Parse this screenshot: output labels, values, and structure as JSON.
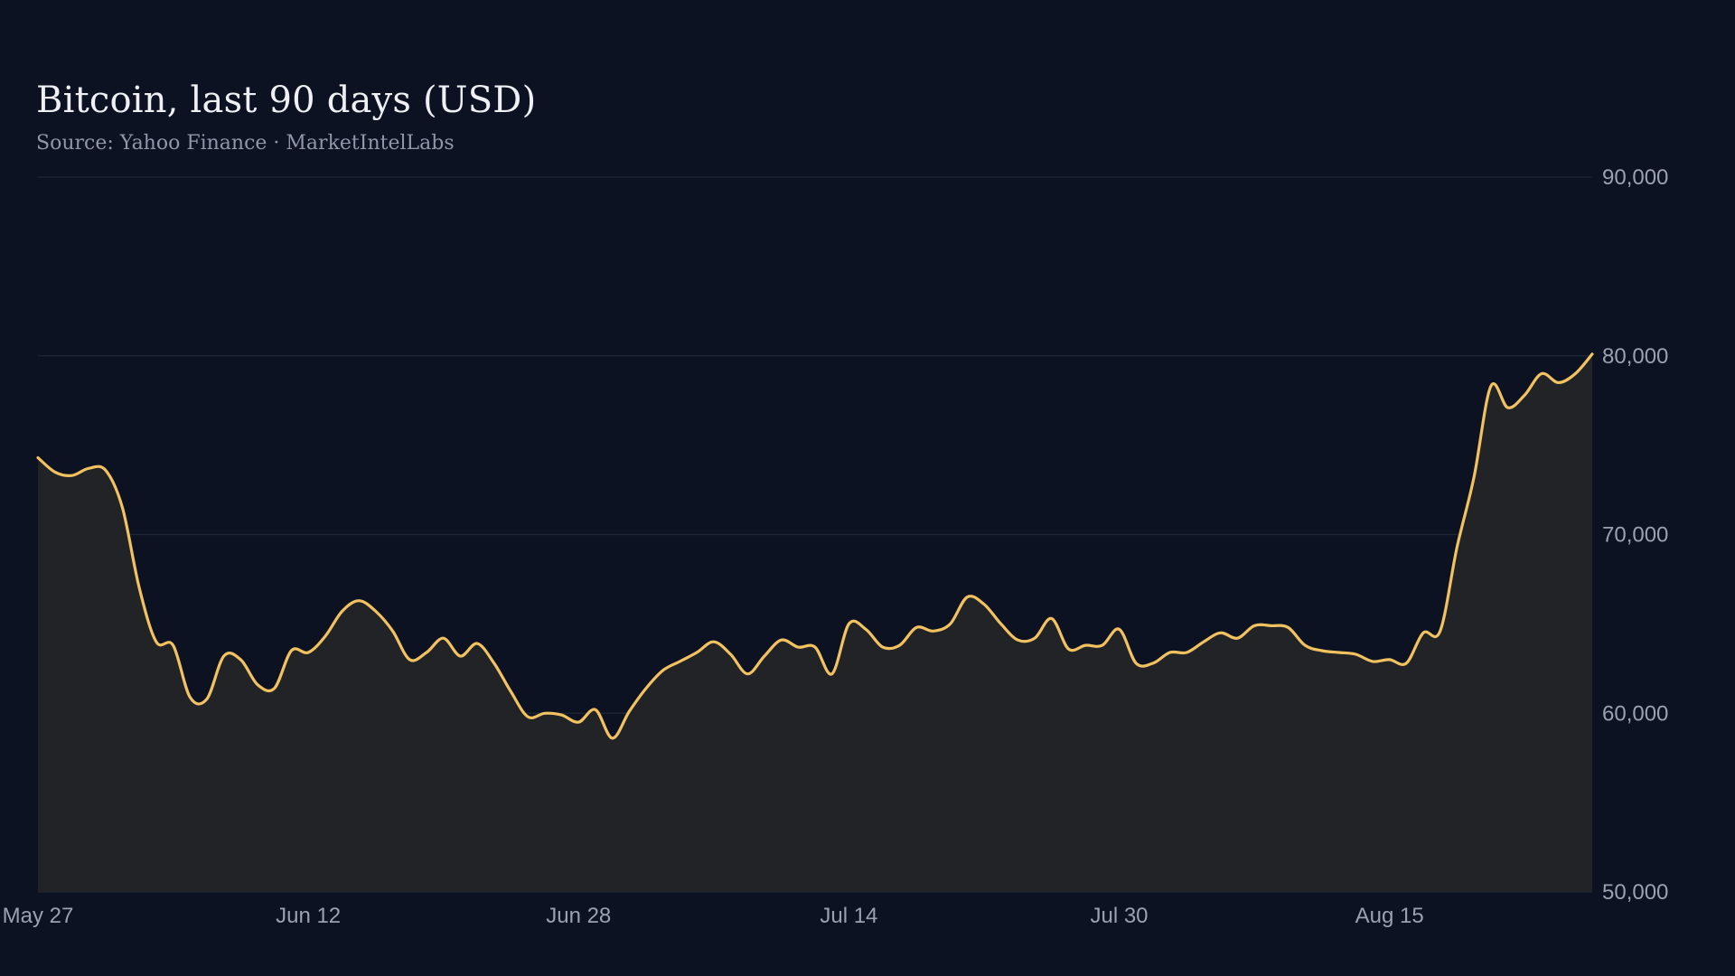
{
  "colors": {
    "background": "#0c1222",
    "line": "#f2c261",
    "area": "#222327",
    "grid": "#1f2736",
    "axis_text": "#9aa2b2"
  },
  "chart_data": {
    "type": "area",
    "title": "Bitcoin, last 90 days (USD)",
    "subtitle": "Source: Yahoo Finance · MarketIntelLabs",
    "xlabel": "",
    "ylabel": "",
    "ylim": [
      50000,
      90000
    ],
    "yticks": [
      50000,
      60000,
      70000,
      80000,
      90000
    ],
    "ytick_labels": [
      "50,000",
      "60,000",
      "70,000",
      "80,000",
      "90,000"
    ],
    "y_axis_side": "right",
    "grid": "horizontal",
    "x_start": "May 27",
    "xlim": [
      "May 27",
      "Aug 27"
    ],
    "xticks": [
      "May 27",
      "Jun 12",
      "Jun 28",
      "Jul 14",
      "Jul 30",
      "Aug 15"
    ],
    "series": [
      {
        "x": [
          "May 27",
          "May 28",
          "May 29",
          "May 30",
          "May 31",
          "Jun 1",
          "Jun 2",
          "Jun 3",
          "Jun 4",
          "Jun 5",
          "Jun 6",
          "Jun 7",
          "Jun 8",
          "Jun 9",
          "Jun 10",
          "Jun 11",
          "Jun 12",
          "Jun 13",
          "Jun 14",
          "Jun 15",
          "Jun 16",
          "Jun 17",
          "Jun 18",
          "Jun 19",
          "Jun 20",
          "Jun 21",
          "Jun 22",
          "Jun 23",
          "Jun 24",
          "Jun 25",
          "Jun 26",
          "Jun 27",
          "Jun 28",
          "Jun 29",
          "Jun 30",
          "Jul 1",
          "Jul 2",
          "Jul 3",
          "Jul 4",
          "Jul 5",
          "Jul 6",
          "Jul 7",
          "Jul 8",
          "Jul 9",
          "Jul 10",
          "Jul 11",
          "Jul 12",
          "Jul 13",
          "Jul 14",
          "Jul 15",
          "Jul 16",
          "Jul 17",
          "Jul 18",
          "Jul 19",
          "Jul 20",
          "Jul 21",
          "Jul 22",
          "Jul 23",
          "Jul 24",
          "Jul 25",
          "Jul 26",
          "Jul 27",
          "Jul 28",
          "Jul 29",
          "Jul 30",
          "Jul 31",
          "Aug 1",
          "Aug 2",
          "Aug 3",
          "Aug 4",
          "Aug 5",
          "Aug 6",
          "Aug 7",
          "Aug 8",
          "Aug 9",
          "Aug 10",
          "Aug 11",
          "Aug 12",
          "Aug 13",
          "Aug 14",
          "Aug 15",
          "Aug 16",
          "Aug 17",
          "Aug 18",
          "Aug 19",
          "Aug 20",
          "Aug 21",
          "Aug 22",
          "Aug 23",
          "Aug 24",
          "Aug 25",
          "Aug 26",
          "Aug 27"
        ],
        "values": [
          74300,
          73500,
          73300,
          73700,
          73600,
          71500,
          67000,
          64000,
          63800,
          60900,
          60800,
          63200,
          63000,
          61600,
          61400,
          63500,
          63400,
          64300,
          65700,
          66300,
          65700,
          64600,
          63000,
          63400,
          64200,
          63200,
          63900,
          62800,
          61200,
          59800,
          60000,
          59900,
          59500,
          60200,
          58600,
          60100,
          61400,
          62400,
          62900,
          63400,
          64000,
          63300,
          62200,
          63200,
          64100,
          63700,
          63700,
          62200,
          65000,
          64700,
          63700,
          63800,
          64800,
          64600,
          65000,
          66500,
          66100,
          65000,
          64100,
          64200,
          65300,
          63600,
          63800,
          63800,
          64700,
          62800,
          62800,
          63400,
          63400,
          64000,
          64500,
          64200,
          64900,
          64900,
          64800,
          63800,
          63500,
          63400,
          63300,
          62900,
          63000,
          62800,
          64500,
          64600,
          69300,
          73200,
          78300,
          77100,
          77800,
          79000,
          78500,
          79000,
          80100
        ]
      }
    ]
  }
}
